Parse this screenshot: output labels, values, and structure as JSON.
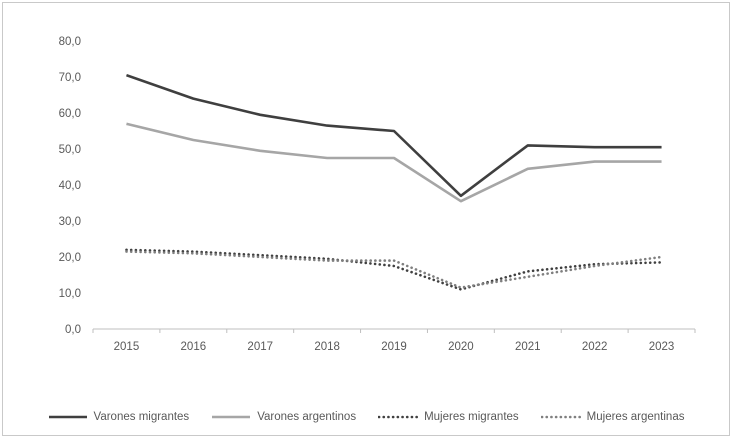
{
  "chart_data": {
    "type": "line",
    "title": "",
    "xlabel": "",
    "ylabel": "",
    "ylim": [
      0,
      80
    ],
    "y_tick_step": 10,
    "y_tick_labels": [
      "0,0",
      "10,0",
      "20,0",
      "30,0",
      "40,0",
      "50,0",
      "60,0",
      "70,0",
      "80,0"
    ],
    "grid": false,
    "legend_position": "bottom",
    "axis_color": "#bfbfbf",
    "categories": [
      "2015",
      "2016",
      "2017",
      "2018",
      "2019",
      "2020",
      "2021",
      "2022",
      "2023"
    ],
    "series": [
      {
        "name": "Varones migrantes",
        "color": "#3f3f3f",
        "line_style": "solid",
        "values": [
          70.5,
          64.0,
          59.5,
          56.5,
          55.0,
          37.0,
          51.0,
          50.5,
          50.5
        ]
      },
      {
        "name": "Varones argentinos",
        "color": "#a6a6a6",
        "line_style": "solid",
        "values": [
          57.0,
          52.5,
          49.5,
          47.5,
          47.5,
          35.5,
          44.5,
          46.5,
          46.5
        ]
      },
      {
        "name": "Mujeres migrantes",
        "color": "#404040",
        "line_style": "dotted",
        "values": [
          22.0,
          21.5,
          20.5,
          19.5,
          17.5,
          11.0,
          16.0,
          18.0,
          18.5
        ]
      },
      {
        "name": "Mujeres argentinas",
        "color": "#7f7f7f",
        "line_style": "dotted",
        "values": [
          21.5,
          21.0,
          20.0,
          19.0,
          19.0,
          11.5,
          14.5,
          17.5,
          20.0
        ]
      }
    ]
  }
}
